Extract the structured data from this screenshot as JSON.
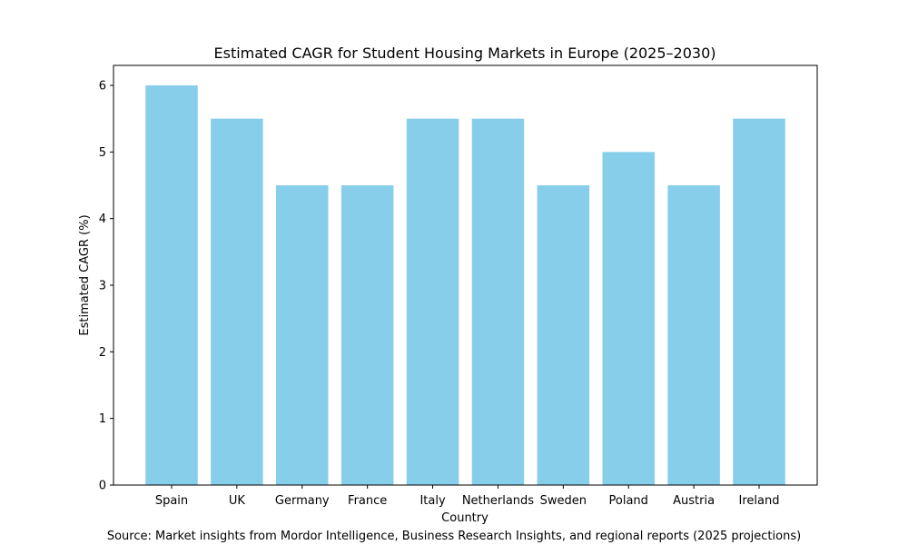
{
  "chart_data": {
    "type": "bar",
    "title": "Estimated CAGR for Student Housing Markets in Europe (2025–2030)",
    "xlabel": "Country",
    "ylabel": "Estimated CAGR (%)",
    "categories": [
      "Spain",
      "UK",
      "Germany",
      "France",
      "Italy",
      "Netherlands",
      "Sweden",
      "Poland",
      "Austria",
      "Ireland"
    ],
    "values": [
      6.0,
      5.5,
      4.5,
      4.5,
      5.5,
      5.5,
      4.5,
      5.0,
      4.5,
      5.5
    ],
    "ylim": [
      0,
      6.3
    ],
    "yticks": [
      0,
      1,
      2,
      3,
      4,
      5,
      6
    ],
    "grid": false,
    "bar_color": "#87ceeb",
    "source_note": "Source: Market insights from Mordor Intelligence, Business Research Insights, and regional reports (2025 projections)"
  }
}
